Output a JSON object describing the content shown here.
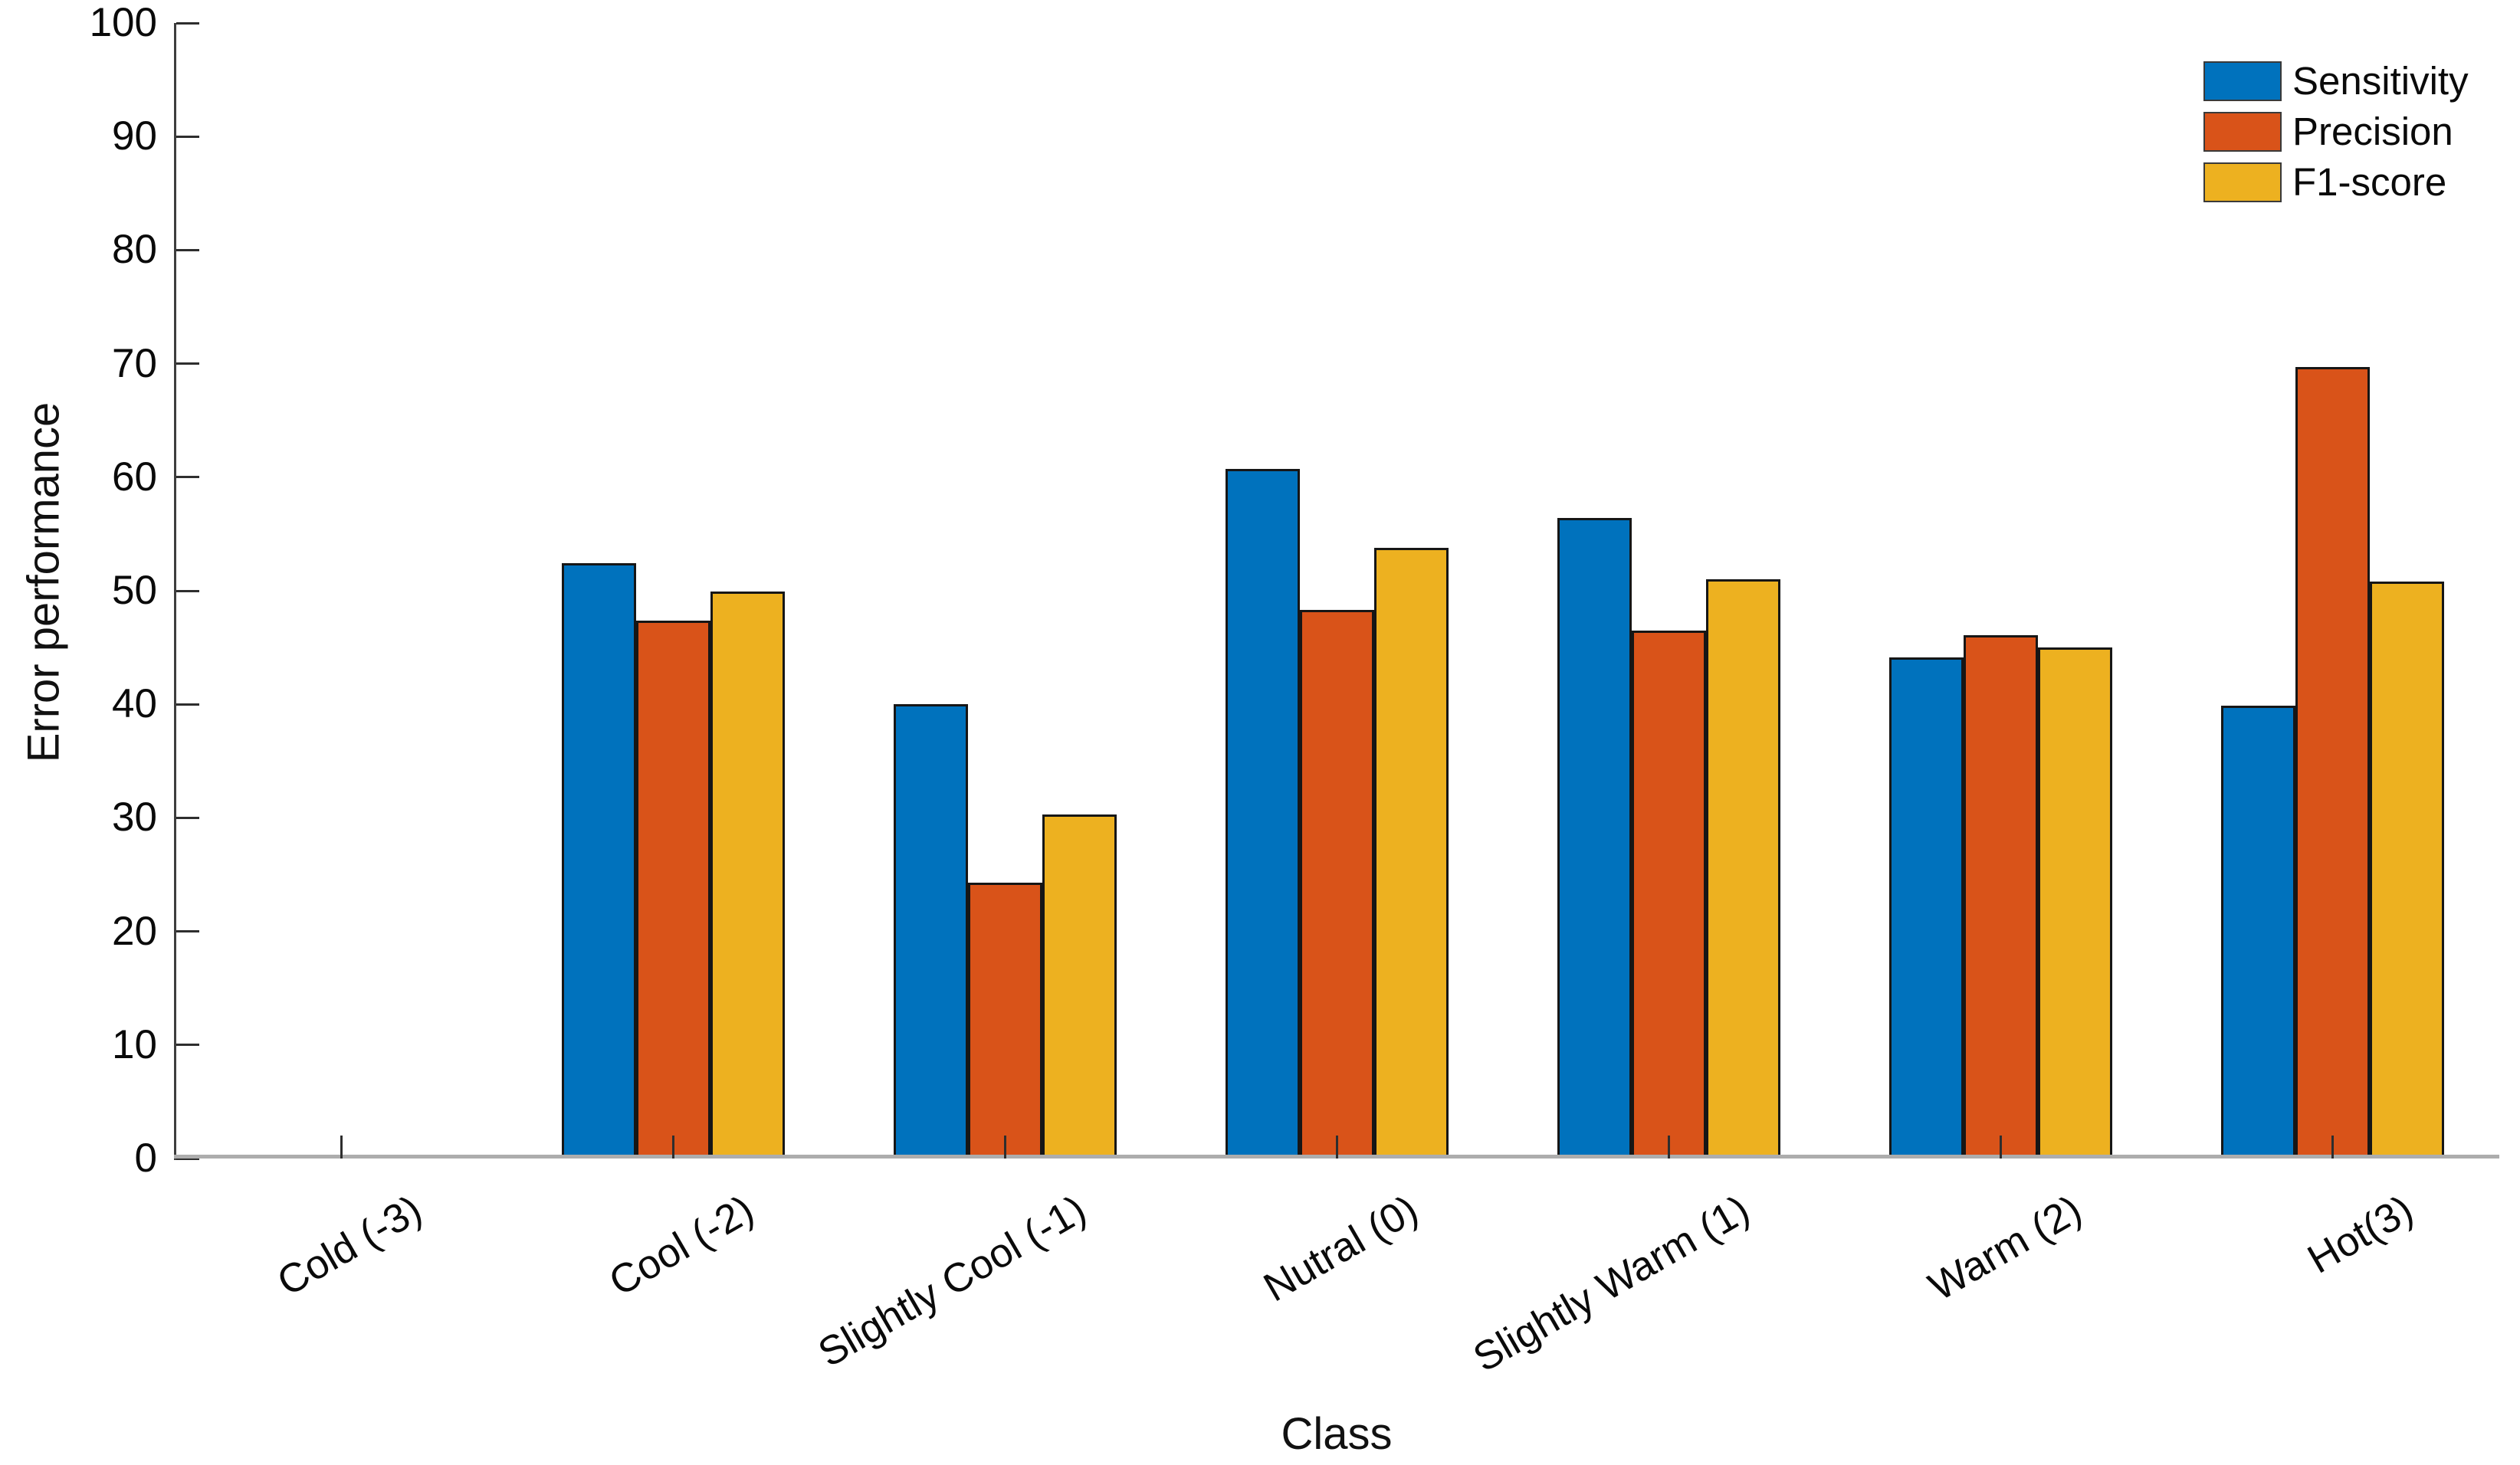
{
  "chart_data": {
    "type": "bar",
    "title": "",
    "xlabel": "Class",
    "ylabel": "Error performance",
    "ylim": [
      0,
      100
    ],
    "yticks": [
      0,
      10,
      20,
      30,
      40,
      50,
      60,
      70,
      80,
      90,
      100
    ],
    "grid": false,
    "legend_position": "top-right",
    "bar_edge_color": "#161616",
    "axis_color": "#3d3d3d",
    "baseline_color": "#adadad",
    "categories": [
      "Cold (-3)",
      "Cool (-2)",
      "Slightly Cool (-1)",
      "Nutral (0)",
      "Slightly Warm (1)",
      "Warm (2)",
      "Hot(3)"
    ],
    "series": [
      {
        "name": "Sensitivity",
        "color": "#0072BD",
        "values": [
          0,
          52.4,
          40.0,
          60.7,
          56.4,
          44.1,
          39.9
        ]
      },
      {
        "name": "Precision",
        "color": "#D95319",
        "values": [
          0,
          47.4,
          24.3,
          48.3,
          46.5,
          46.1,
          69.7
        ]
      },
      {
        "name": "F1-score",
        "color": "#EDB120",
        "values": [
          0,
          49.9,
          30.3,
          53.8,
          51.0,
          45.0,
          50.8
        ]
      }
    ]
  }
}
